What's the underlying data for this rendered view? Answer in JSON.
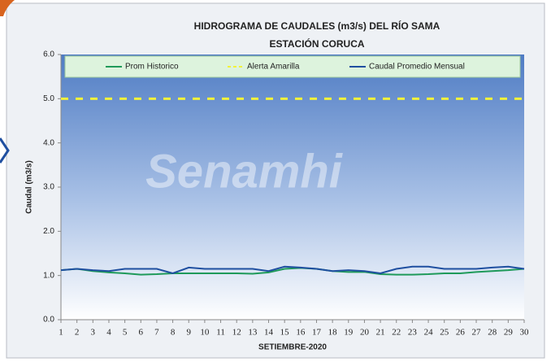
{
  "chart_data": {
    "type": "line",
    "title": "HIDROGRAMA DE CAUDALES (m3/s) DEL RÍO SAMA",
    "subtitle": "ESTACIÓN CORUCA",
    "watermark": "Senamhi",
    "xlabel": "SETIEMBRE-2020",
    "ylabel": "Caudal (m3/s)",
    "x": [
      1,
      2,
      3,
      4,
      5,
      6,
      7,
      8,
      9,
      10,
      11,
      12,
      13,
      14,
      15,
      16,
      17,
      18,
      19,
      20,
      21,
      22,
      23,
      24,
      25,
      26,
      27,
      28,
      29,
      30
    ],
    "xlim": [
      1,
      30
    ],
    "xticks": [
      1,
      2,
      3,
      4,
      5,
      6,
      7,
      8,
      9,
      10,
      11,
      12,
      13,
      14,
      15,
      16,
      17,
      18,
      19,
      20,
      21,
      22,
      23,
      24,
      25,
      26,
      27,
      28,
      29,
      30
    ],
    "ylim": [
      0,
      6
    ],
    "yticks": [
      {
        "value": 0,
        "label": "0.0"
      },
      {
        "value": 1,
        "label": "1.0"
      },
      {
        "value": 2,
        "label": "2.0"
      },
      {
        "value": 3,
        "label": "3.0"
      },
      {
        "value": 4,
        "label": "4.0"
      },
      {
        "value": 5,
        "label": "5.0"
      },
      {
        "value": 6,
        "label": "6.0"
      }
    ],
    "legend": "top",
    "series": [
      {
        "name": "Prom Historico",
        "color": "#1f9a5a",
        "style": "solid",
        "values": [
          1.12,
          1.15,
          1.1,
          1.07,
          1.05,
          1.02,
          1.03,
          1.05,
          1.05,
          1.05,
          1.05,
          1.05,
          1.04,
          1.07,
          1.15,
          1.17,
          1.15,
          1.1,
          1.08,
          1.08,
          1.03,
          1.02,
          1.02,
          1.03,
          1.05,
          1.05,
          1.08,
          1.1,
          1.12,
          1.15
        ]
      },
      {
        "name": "Alerta Amarilla",
        "color": "#f2f23a",
        "style": "dashed",
        "values": [
          5,
          5,
          5,
          5,
          5,
          5,
          5,
          5,
          5,
          5,
          5,
          5,
          5,
          5,
          5,
          5,
          5,
          5,
          5,
          5,
          5,
          5,
          5,
          5,
          5,
          5,
          5,
          5,
          5,
          5
        ]
      },
      {
        "name": "Caudal Promedio Mensual",
        "color": "#1f4fa0",
        "style": "solid",
        "values": [
          1.12,
          1.15,
          1.12,
          1.1,
          1.15,
          1.15,
          1.15,
          1.05,
          1.18,
          1.15,
          1.15,
          1.15,
          1.15,
          1.1,
          1.2,
          1.18,
          1.15,
          1.1,
          1.12,
          1.1,
          1.05,
          1.15,
          1.2,
          1.2,
          1.15,
          1.15,
          1.15,
          1.18,
          1.2,
          1.15
        ]
      }
    ]
  }
}
